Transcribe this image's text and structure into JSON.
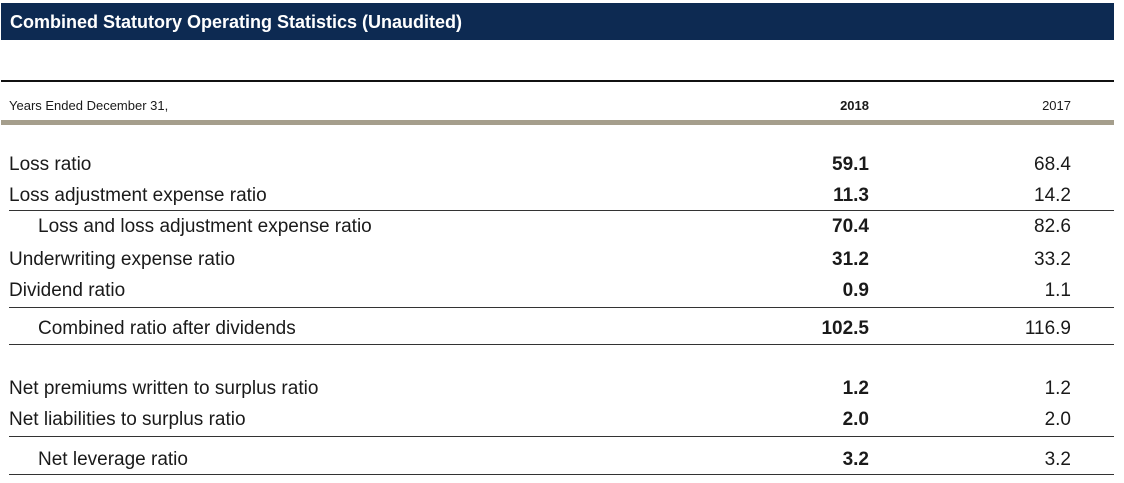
{
  "title": "Combined Statutory Operating Statistics (Unaudited)",
  "header": {
    "label": "Years Ended December 31,",
    "col_2018": "2018",
    "col_2017": "2017"
  },
  "rows": [
    {
      "label": "Loss ratio",
      "v2018": "59.1",
      "v2017": "68.4"
    },
    {
      "label": "Loss adjustment expense ratio",
      "v2018": "11.3",
      "v2017": "14.2"
    },
    {
      "label": "Loss and loss adjustment expense ratio",
      "v2018": "70.4",
      "v2017": "82.6"
    },
    {
      "label": "Underwriting expense ratio",
      "v2018": "31.2",
      "v2017": "33.2"
    },
    {
      "label": "Dividend ratio",
      "v2018": "0.9",
      "v2017": "1.1"
    },
    {
      "label": "Combined ratio after dividends",
      "v2018": "102.5",
      "v2017": "116.9"
    },
    {
      "label": "Net premiums written to surplus ratio",
      "v2018": "1.2",
      "v2017": "1.2"
    },
    {
      "label": "Net liabilities to surplus ratio",
      "v2018": "2.0",
      "v2017": "2.0"
    },
    {
      "label": "Net leverage ratio",
      "v2018": "3.2",
      "v2017": "3.2"
    }
  ]
}
